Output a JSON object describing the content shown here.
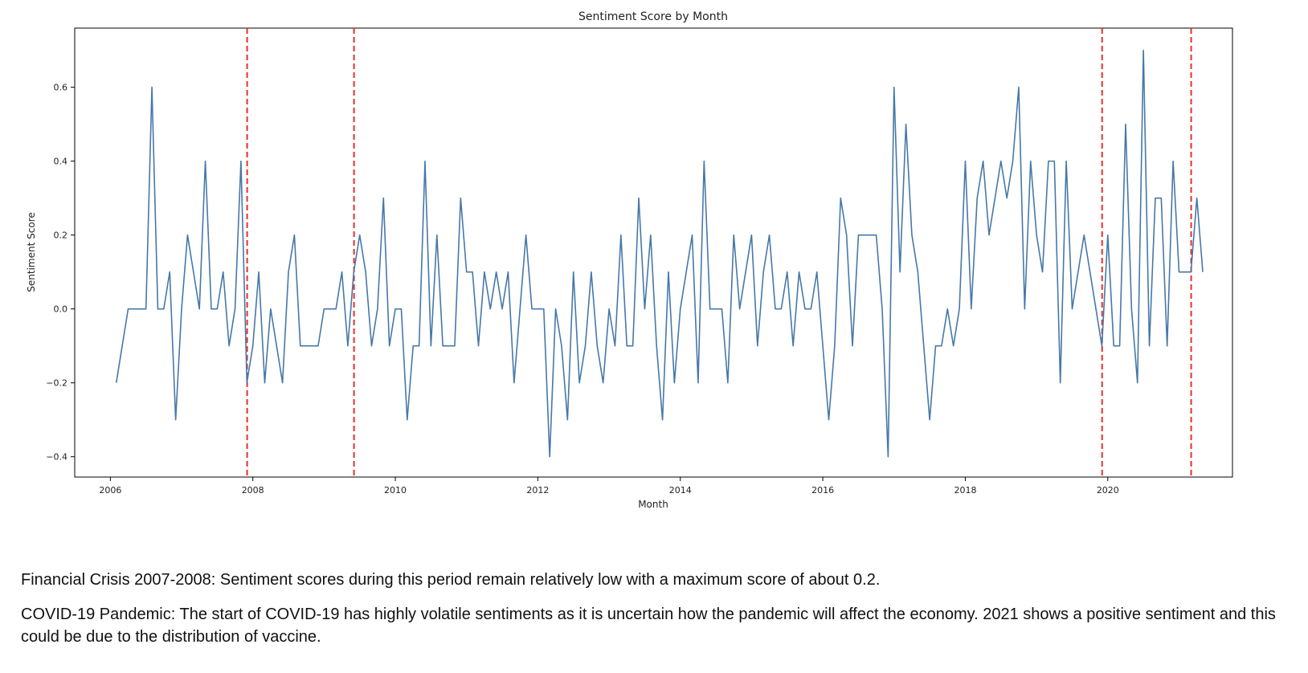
{
  "chart_data": {
    "type": "line",
    "title": "Sentiment Score by Month",
    "xlabel": "Month",
    "ylabel": "Sentiment Score",
    "xlim": [
      2005.5,
      2021.75
    ],
    "ylim": [
      -0.455,
      0.76
    ],
    "x_ticks": [
      2006,
      2008,
      2010,
      2012,
      2014,
      2016,
      2018,
      2020
    ],
    "x_tick_labels": [
      "2006",
      "2008",
      "2010",
      "2012",
      "2014",
      "2016",
      "2018",
      "2020"
    ],
    "y_ticks": [
      -0.4,
      -0.2,
      0.0,
      0.2,
      0.4,
      0.6
    ],
    "y_tick_labels": [
      "−0.4",
      "−0.2",
      "0.0",
      "0.2",
      "0.4",
      "0.6"
    ],
    "grid": false,
    "line_color": "#4678a8",
    "series": [
      {
        "name": "Sentiment Score",
        "start_year": 2006.0,
        "months_offset": 1,
        "values": [
          -0.2,
          -0.1,
          0,
          0,
          0,
          0,
          0.6,
          0,
          0,
          0.1,
          -0.3,
          0,
          0.2,
          0.1,
          0,
          0.4,
          0,
          0,
          0.1,
          -0.1,
          0,
          0.4,
          -0.2,
          -0.1,
          0.1,
          -0.2,
          0,
          -0.1,
          -0.2,
          0.1,
          0.2,
          -0.1,
          -0.1,
          -0.1,
          -0.1,
          0,
          0,
          0,
          0.1,
          -0.1,
          0.1,
          0.2,
          0.1,
          -0.1,
          0,
          0.3,
          -0.1,
          0,
          0,
          -0.3,
          -0.1,
          -0.1,
          0.4,
          -0.1,
          0.2,
          -0.1,
          -0.1,
          -0.1,
          0.3,
          0.1,
          0.1,
          -0.1,
          0.1,
          0,
          0.1,
          0,
          0.1,
          -0.2,
          0,
          0.2,
          0,
          0,
          0,
          -0.4,
          0,
          -0.1,
          -0.3,
          0.1,
          -0.2,
          -0.1,
          0.1,
          -0.1,
          -0.2,
          0,
          -0.1,
          0.2,
          -0.1,
          -0.1,
          0.3,
          0,
          0.2,
          -0.1,
          -0.3,
          0.1,
          -0.2,
          0,
          0.1,
          0.2,
          -0.2,
          0.4,
          0,
          0,
          0,
          -0.2,
          0.2,
          0,
          0.1,
          0.2,
          -0.1,
          0.1,
          0.2,
          0,
          0,
          0.1,
          -0.1,
          0.1,
          0,
          0,
          0.1,
          -0.1,
          -0.3,
          -0.1,
          0.3,
          0.2,
          -0.1,
          0.2,
          0.2,
          0.2,
          0.2,
          0,
          -0.4,
          0.6,
          0.1,
          0.5,
          0.2,
          0.1,
          -0.1,
          -0.3,
          -0.1,
          -0.1,
          0,
          -0.1,
          0,
          0.4,
          0,
          0.3,
          0.4,
          0.2,
          0.3,
          0.4,
          0.3,
          0.4,
          0.6,
          0,
          0.4,
          0.2,
          0.1,
          0.4,
          0.4,
          -0.2,
          0.4,
          0,
          0.1,
          0.2,
          0.1,
          0,
          -0.1,
          0.2,
          -0.1,
          -0.1,
          0.5,
          0,
          -0.2,
          0.7,
          -0.1,
          0.3,
          0.3,
          -0.1,
          0.4,
          0.1,
          0.1,
          0.1,
          0.3,
          0.1
        ]
      }
    ],
    "annotations": [
      {
        "type": "vline",
        "x": 2007.92,
        "color": "#e8302a",
        "style": "dashed"
      },
      {
        "type": "vline",
        "x": 2009.42,
        "color": "#e8302a",
        "style": "dashed"
      },
      {
        "type": "vline",
        "x": 2019.92,
        "color": "#e8302a",
        "style": "dashed"
      },
      {
        "type": "vline",
        "x": 2021.17,
        "color": "#e8302a",
        "style": "dashed"
      }
    ]
  },
  "notes": {
    "financial_crisis": "Financial Crisis 2007-2008: Sentiment scores during this period remain relatively low with a maximum score of about 0.2.",
    "covid": "COVID-19 Pandemic: The start of COVID-19 has highly volatile sentiments as it is uncertain how the pandemic will affect the economy. 2021 shows a positive sentiment and this could be due to the distribution of vaccine."
  }
}
